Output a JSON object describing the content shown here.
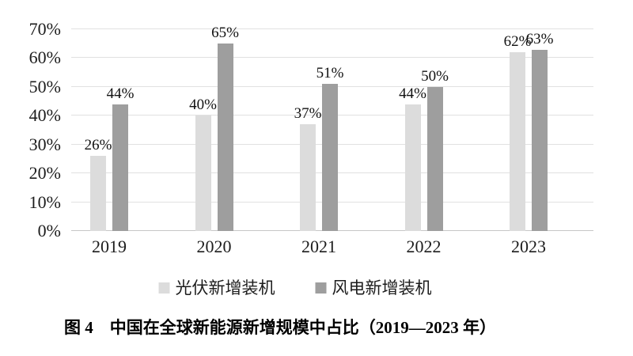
{
  "chart_data": {
    "type": "bar",
    "title": "图 4　中国在全球新能源新增规模中占比（2019—2023 年）",
    "categories": [
      "2019",
      "2020",
      "2021",
      "2022",
      "2023"
    ],
    "series": [
      {
        "name": "光伏新增装机",
        "color": "#dcdcdc",
        "values": [
          26,
          40,
          37,
          44,
          62
        ]
      },
      {
        "name": "风电新增装机",
        "color": "#9e9e9e",
        "values": [
          44,
          65,
          51,
          50,
          63
        ]
      }
    ],
    "unit": "%",
    "ylim": [
      0,
      70
    ],
    "y_tick_step": 10,
    "y_tick_labels": [
      "0%",
      "10%",
      "20%",
      "30%",
      "40%",
      "50%",
      "60%",
      "70%"
    ],
    "xlabel": "",
    "ylabel": "",
    "grid": true,
    "data_labels": true,
    "legend_position": "bottom"
  }
}
